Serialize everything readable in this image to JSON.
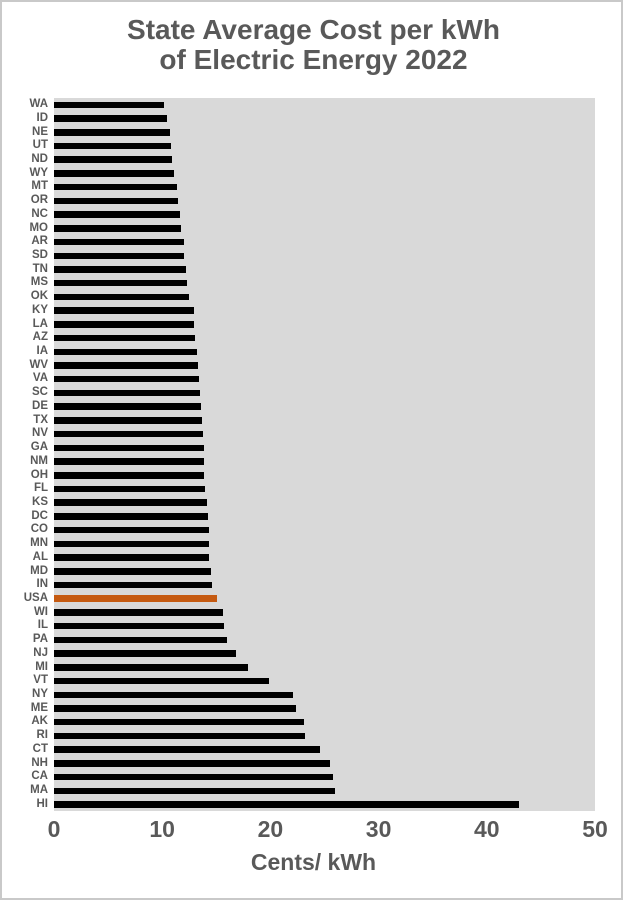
{
  "title_line1": "State Average Cost per kWh",
  "title_line2": "of Electric Energy 2022",
  "colors": {
    "text": "#595959",
    "plot_background": "#d9d9d9",
    "bar": "#000000",
    "highlight_bar": "#c55a11",
    "page_border": "#c9c9c9"
  },
  "chart_data": {
    "type": "bar",
    "orientation": "horizontal",
    "title": "State Average Cost per kWh of Electric Energy 2022",
    "xlabel": "Cents/ kWh",
    "ylabel": "",
    "xlim": [
      0,
      50
    ],
    "x_ticks": [
      0,
      10,
      20,
      30,
      40,
      50
    ],
    "grid": false,
    "legend": false,
    "highlight_category": "USA",
    "categories": [
      "WA",
      "ID",
      "NE",
      "UT",
      "ND",
      "WY",
      "MT",
      "OR",
      "NC",
      "MO",
      "AR",
      "SD",
      "TN",
      "MS",
      "OK",
      "KY",
      "LA",
      "AZ",
      "IA",
      "WV",
      "VA",
      "SC",
      "DE",
      "TX",
      "NV",
      "GA",
      "NM",
      "OH",
      "FL",
      "KS",
      "DC",
      "CO",
      "MN",
      "AL",
      "MD",
      "IN",
      "USA",
      "WI",
      "IL",
      "PA",
      "NJ",
      "MI",
      "VT",
      "NY",
      "ME",
      "AK",
      "RI",
      "CT",
      "NH",
      "CA",
      "MA",
      "HI"
    ],
    "values": [
      10.2,
      10.4,
      10.7,
      10.8,
      10.9,
      11.1,
      11.4,
      11.5,
      11.6,
      11.7,
      12.0,
      12.0,
      12.2,
      12.3,
      12.5,
      12.9,
      12.9,
      13.0,
      13.2,
      13.3,
      13.4,
      13.5,
      13.6,
      13.7,
      13.8,
      13.9,
      13.9,
      13.9,
      14.0,
      14.1,
      14.2,
      14.3,
      14.3,
      14.3,
      14.5,
      14.6,
      15.1,
      15.6,
      15.7,
      16.0,
      16.8,
      17.9,
      19.9,
      22.1,
      22.4,
      23.1,
      23.2,
      24.6,
      25.5,
      25.8,
      26.0,
      43.0
    ]
  }
}
